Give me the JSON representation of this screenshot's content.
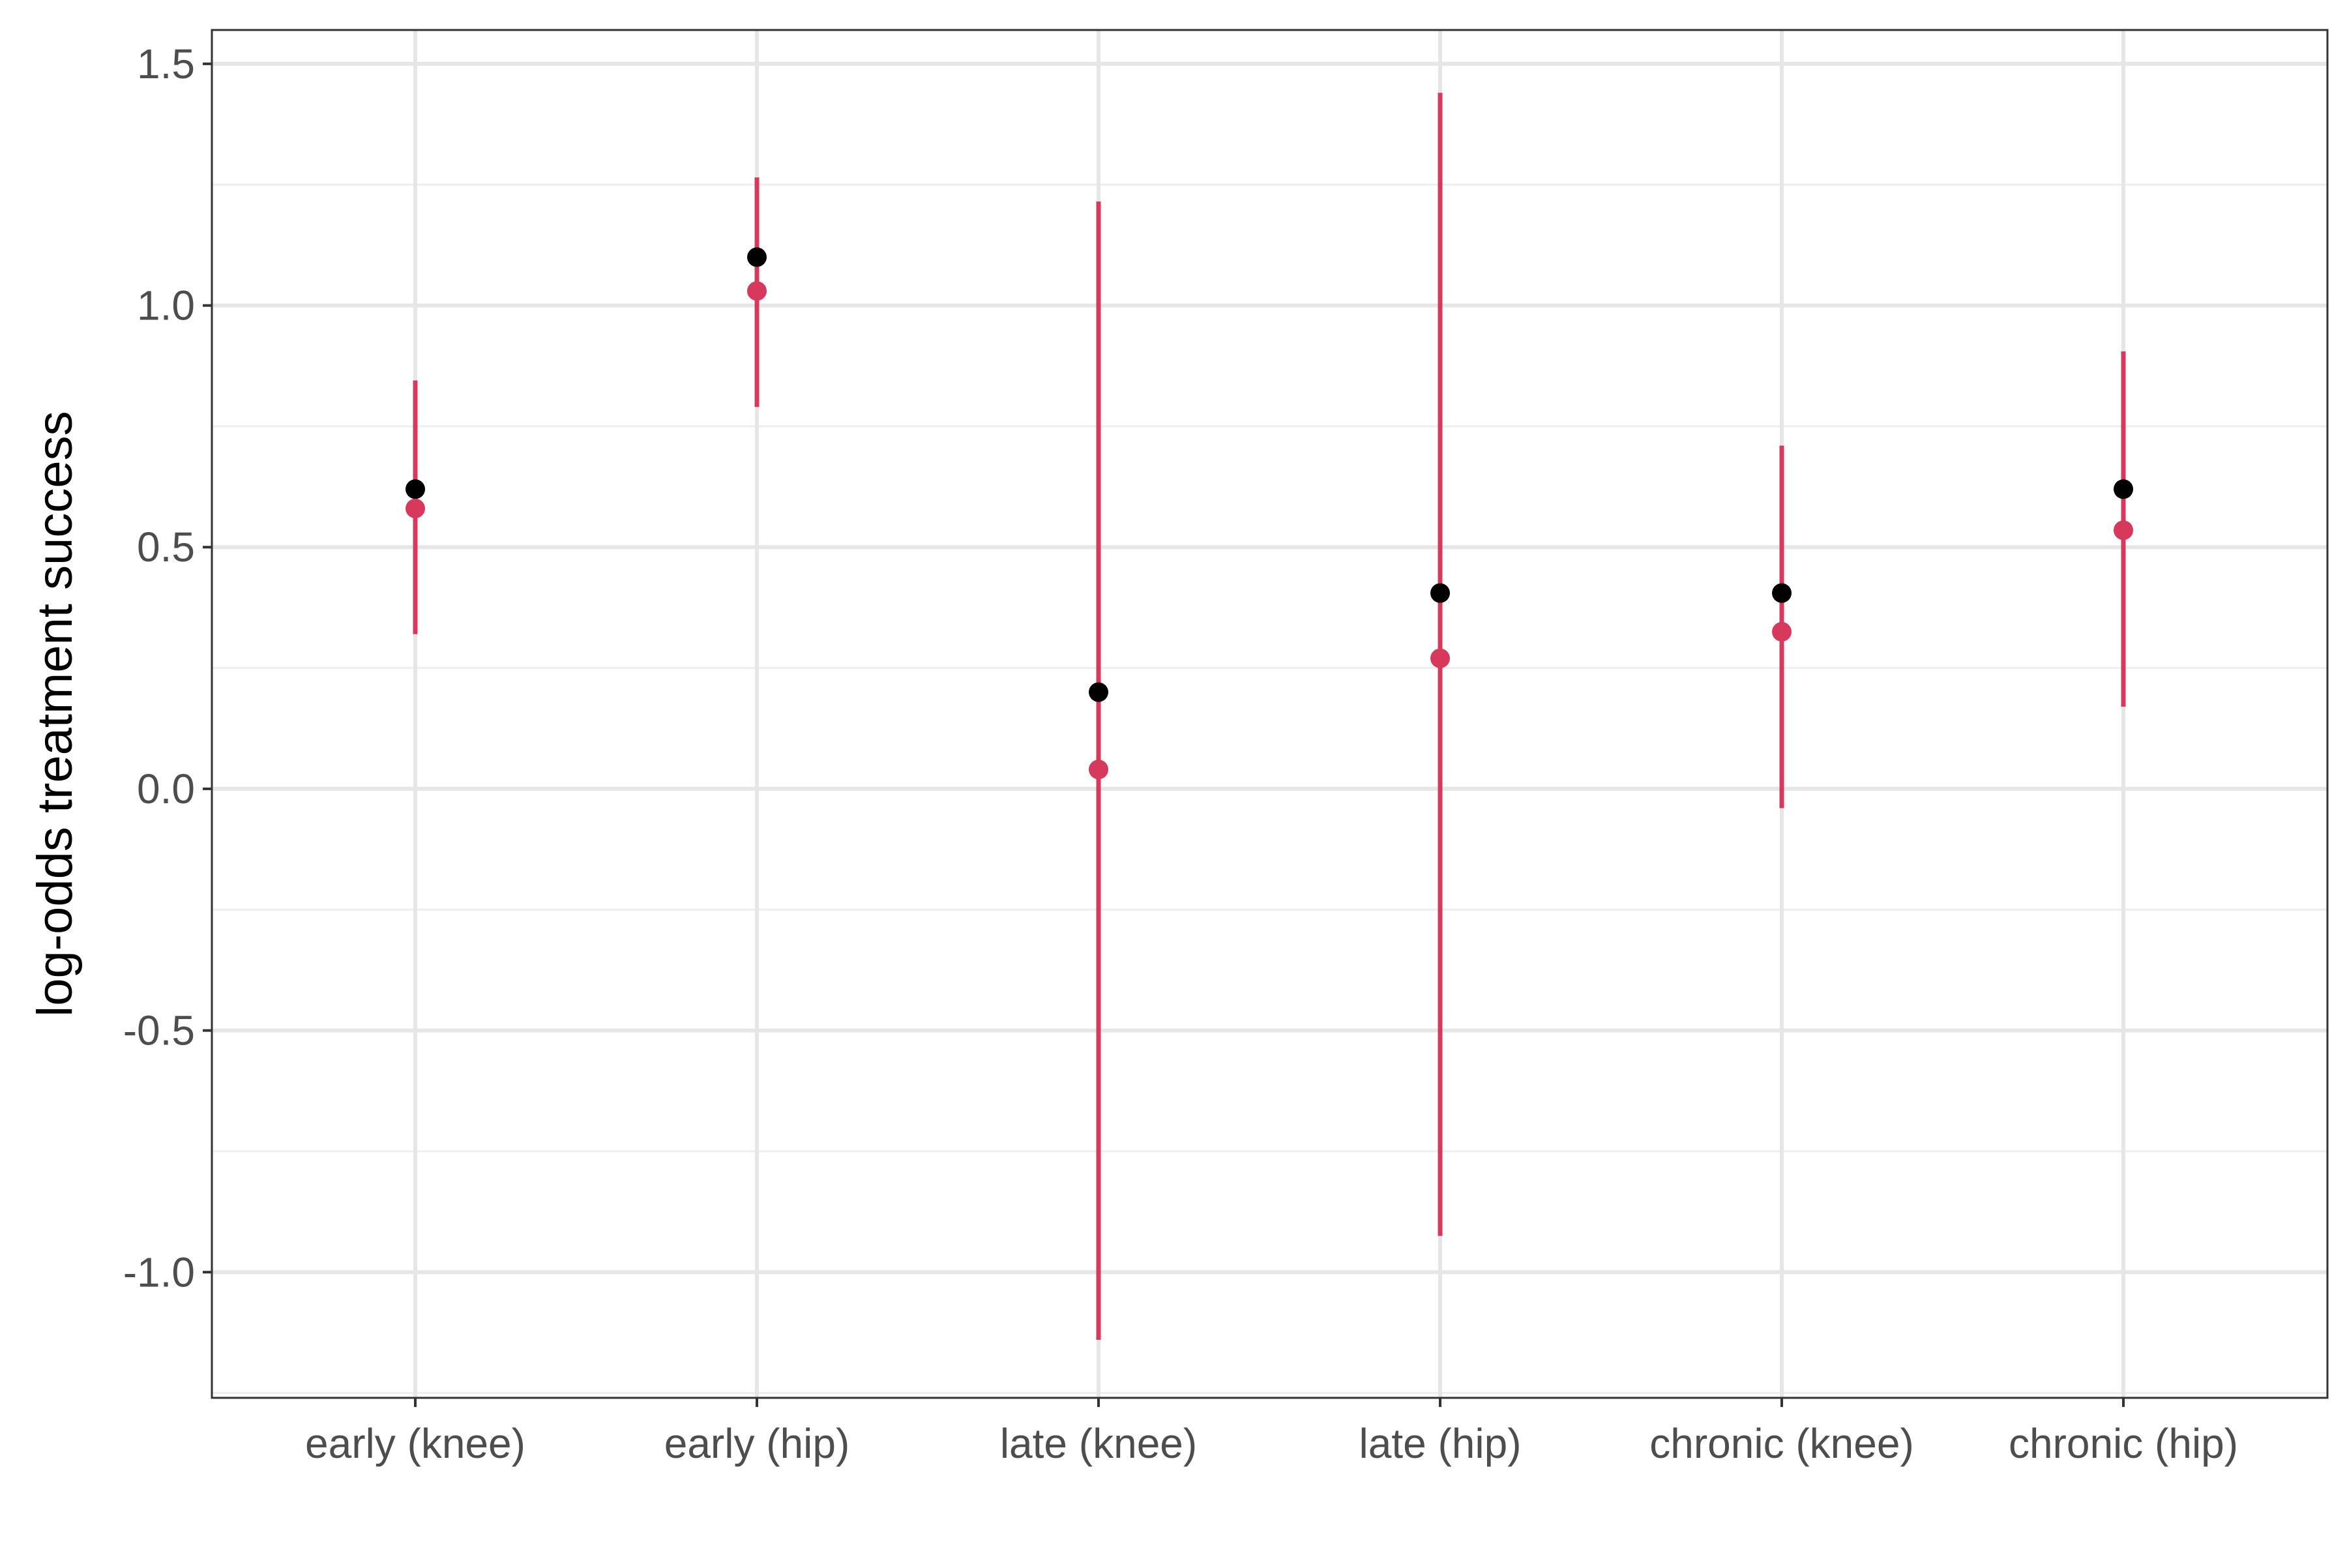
{
  "colors": {
    "observed": "#000000",
    "estimate": "#D6395C",
    "grid_major": "#E6E6E6",
    "grid_minor": "#EEEEEE",
    "panel_border": "#333333",
    "tick_text": "#4D4D4D"
  },
  "chart_data": {
    "type": "scatter",
    "title": "",
    "xlabel": "",
    "ylabel": "log-odds treatment success",
    "categories": [
      "early (knee)",
      "early (hip)",
      "late (knee)",
      "late (hip)",
      "chronic (knee)",
      "chronic (hip)"
    ],
    "ylim": [
      -1.26,
      1.57
    ],
    "yticks": [
      -1.0,
      -0.5,
      0.0,
      0.5,
      1.0,
      1.5
    ],
    "ytick_labels": [
      "-1.0",
      "-0.5",
      "0.0",
      "0.5",
      "1.0",
      "1.5"
    ],
    "grid": true,
    "legend": "none",
    "series": [
      {
        "marker": "point",
        "color": "#000000",
        "values": [
          0.62,
          1.1,
          0.2,
          0.405,
          0.405,
          0.62
        ]
      },
      {
        "marker": "pointrange",
        "color": "#D6395C",
        "values": [
          0.58,
          1.03,
          0.04,
          0.27,
          0.325,
          0.535
        ],
        "lower": [
          0.32,
          0.79,
          -1.14,
          -0.925,
          -0.04,
          0.17
        ],
        "upper": [
          0.845,
          1.265,
          1.215,
          1.44,
          0.71,
          0.905
        ]
      }
    ]
  }
}
